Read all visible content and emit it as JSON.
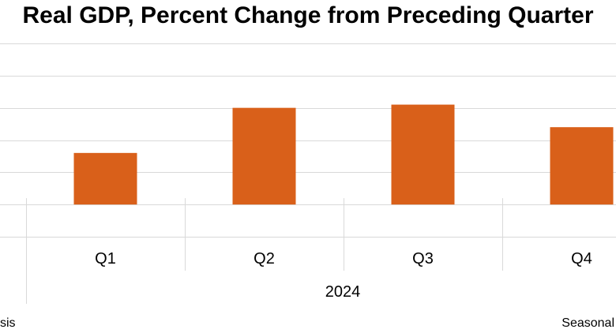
{
  "chart_data": {
    "type": "bar",
    "title": "Real GDP, Percent Change from Preceding Quarter",
    "categories": [
      "Q1",
      "Q2",
      "Q3",
      "Q4"
    ],
    "group_label": "2024",
    "values": [
      1.6,
      3.0,
      3.1,
      2.4
    ],
    "ylim": [
      -1,
      5
    ],
    "grid": true,
    "bar_color": "#D9601A",
    "xlabel": "",
    "ylabel": ""
  },
  "footer": {
    "left": "sis",
    "right": "Seasonal"
  },
  "colors": {
    "grid": "#D9D9D9",
    "axis_separator": "#D9D9D9"
  }
}
